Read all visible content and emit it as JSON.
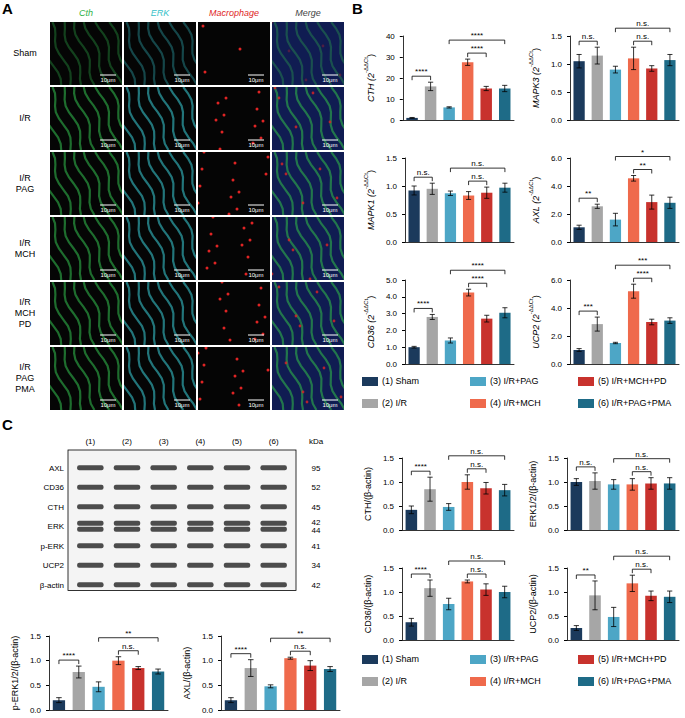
{
  "panel_labels": [
    "A",
    "B",
    "C"
  ],
  "microscopy": {
    "columns": [
      {
        "label": "Cth",
        "color": "#2fb34a"
      },
      {
        "label": "ERK",
        "color": "#35bfc8"
      },
      {
        "label": "Macrophage",
        "color": "#e02424"
      },
      {
        "label": "Merge",
        "color": "#444444"
      }
    ],
    "rows": [
      [
        "Sham"
      ],
      [
        "I/R"
      ],
      [
        "I/R",
        "PAG"
      ],
      [
        "I/R",
        "MCH"
      ],
      [
        "I/R",
        "MCH",
        "PD"
      ],
      [
        "I/R",
        "PAG",
        "PMA"
      ]
    ],
    "scale_bar": "10μm"
  },
  "blot": {
    "lanes": [
      "(1)",
      "(2)",
      "(3)",
      "(4)",
      "(5)",
      "(6)"
    ],
    "unit": "kDa",
    "rows": [
      {
        "name": "AXL",
        "kda": [
          "95"
        ]
      },
      {
        "name": "CD36",
        "kda": [
          "52"
        ]
      },
      {
        "name": "CTH",
        "kda": [
          "45"
        ]
      },
      {
        "name": "ERK",
        "kda": [
          "42",
          "44"
        ]
      },
      {
        "name": "p-ERK",
        "kda": [
          "41"
        ]
      },
      {
        "name": "UCP2",
        "kda": [
          "34"
        ]
      },
      {
        "name": "β-actin",
        "kda": [
          "42"
        ]
      }
    ]
  },
  "group_legend": [
    {
      "name": "(1) Sham",
      "color": "#1b3a5c"
    },
    {
      "name": "(2) I/R",
      "color": "#a6a6a6"
    },
    {
      "name": "(3) I/R+PAG",
      "color": "#4da6c6"
    },
    {
      "name": "(4) I/R+MCH",
      "color": "#ef6a4c"
    },
    {
      "name": "(5) I/R+MCH+PD",
      "color": "#c8322d"
    },
    {
      "name": "(6) I/R+PAG+PMA",
      "color": "#1e6b87"
    }
  ],
  "chart_data": [
    {
      "type": "bar",
      "ylabel": {
        "text": "CTH (2",
        "superscript": "-ΔΔCt",
        "suffix": ")"
      },
      "categories": [
        "(1) Sham",
        "(2) I/R",
        "(3) I/R+PAG",
        "(4) I/R+MCH",
        "(5) I/R+MCH+PD",
        "(6) I/R+PAG+PMA"
      ],
      "values": [
        1,
        16,
        6,
        27.5,
        15,
        15
      ],
      "errors": [
        0.2,
        2,
        0.3,
        1.5,
        1,
        1.5
      ],
      "colors": [
        "#1b3a5c",
        "#a6a6a6",
        "#4da6c6",
        "#ef6a4c",
        "#c8322d",
        "#1e6b87"
      ],
      "ylim": [
        0,
        40
      ],
      "yticks": [
        0,
        10,
        20,
        30,
        40
      ],
      "grid": false,
      "tick_labels": "y",
      "significance": [
        {
          "from": "(1) Sham",
          "to": "(2) I/R",
          "label": "****"
        },
        {
          "from": "(3) I/R+PAG",
          "to": "(6) I/R+PAG+PMA",
          "label": "****"
        },
        {
          "from": "(4) I/R+MCH",
          "to": "(5) I/R+MCH+PD",
          "label": "****"
        }
      ]
    },
    {
      "type": "bar",
      "ylabel": {
        "text": "MAPK3 (2",
        "superscript": "-ΔΔCt",
        "suffix": ")"
      },
      "categories": [
        "(1) Sham",
        "(2) I/R",
        "(3) I/R+PAG",
        "(4) I/R+MCH",
        "(5) I/R+MCH+PD",
        "(6) I/R+PAG+PMA"
      ],
      "values": [
        1.05,
        1.15,
        0.9,
        1.1,
        0.92,
        1.07
      ],
      "errors": [
        0.12,
        0.15,
        0.06,
        0.2,
        0.05,
        0.1
      ],
      "colors": [
        "#1b3a5c",
        "#a6a6a6",
        "#4da6c6",
        "#ef6a4c",
        "#c8322d",
        "#1e6b87"
      ],
      "ylim": [
        0,
        1.5
      ],
      "yticks": [
        {
          "value": 0,
          "label": "0.0"
        },
        {
          "value": 0.5,
          "label": "0.5"
        },
        {
          "value": 1,
          "label": "1.0"
        },
        {
          "value": 1.5,
          "label": "1.5"
        }
      ],
      "grid": false,
      "tick_labels": "y",
      "significance": [
        {
          "from": "(1) Sham",
          "to": "(2) I/R",
          "label": "n.s."
        },
        {
          "from": "(3) I/R+PAG",
          "to": "(6) I/R+PAG+PMA",
          "label": "n.s."
        },
        {
          "from": "(4) I/R+MCH",
          "to": "(5) I/R+MCH+PD",
          "label": "n.s."
        }
      ]
    },
    {
      "type": "bar",
      "ylabel": {
        "text": "MAPK1 (2",
        "superscript": "-ΔΔCt",
        "suffix": ")"
      },
      "categories": [
        "(1) Sham",
        "(2) I/R",
        "(3) I/R+PAG",
        "(4) I/R+MCH",
        "(5) I/R+MCH+PD",
        "(6) I/R+PAG+PMA"
      ],
      "values": [
        0.92,
        0.95,
        0.87,
        0.83,
        0.88,
        0.97
      ],
      "errors": [
        0.08,
        0.1,
        0.04,
        0.07,
        0.1,
        0.08
      ],
      "colors": [
        "#1b3a5c",
        "#a6a6a6",
        "#4da6c6",
        "#ef6a4c",
        "#c8322d",
        "#1e6b87"
      ],
      "ylim": [
        0,
        1.5
      ],
      "yticks": [
        {
          "value": 0,
          "label": "0.0"
        },
        {
          "value": 0.5,
          "label": "0.5"
        },
        {
          "value": 1,
          "label": "1.0"
        },
        {
          "value": 1.5,
          "label": "1.5"
        }
      ],
      "grid": false,
      "tick_labels": "y",
      "significance": [
        {
          "from": "(1) Sham",
          "to": "(2) I/R",
          "label": "n.s."
        },
        {
          "from": "(3) I/R+PAG",
          "to": "(6) I/R+PAG+PMA",
          "label": "n.s."
        },
        {
          "from": "(4) I/R+MCH",
          "to": "(5) I/R+MCH+PD",
          "label": "n.s."
        }
      ]
    },
    {
      "type": "bar",
      "ylabel": {
        "text": "AXL (2",
        "superscript": "-ΔΔCt",
        "suffix": ")"
      },
      "categories": [
        "(1) Sham",
        "(2) I/R",
        "(3) I/R+PAG",
        "(4) I/R+MCH",
        "(5) I/R+MCH+PD",
        "(6) I/R+PAG+PMA"
      ],
      "values": [
        1.05,
        2.55,
        1.6,
        4.55,
        2.85,
        2.8
      ],
      "errors": [
        0.15,
        0.15,
        0.45,
        0.2,
        0.5,
        0.4
      ],
      "colors": [
        "#1b3a5c",
        "#a6a6a6",
        "#4da6c6",
        "#ef6a4c",
        "#c8322d",
        "#1e6b87"
      ],
      "ylim": [
        0,
        6
      ],
      "yticks": [
        {
          "value": 0,
          "label": "0.0"
        },
        {
          "value": 2,
          "label": "2.0"
        },
        {
          "value": 4,
          "label": "4.0"
        },
        {
          "value": 6,
          "label": "6.0"
        }
      ],
      "grid": false,
      "tick_labels": "y",
      "significance": [
        {
          "from": "(1) Sham",
          "to": "(2) I/R",
          "label": "**"
        },
        {
          "from": "(3) I/R+PAG",
          "to": "(6) I/R+PAG+PMA",
          "label": "*"
        },
        {
          "from": "(4) I/R+MCH",
          "to": "(5) I/R+MCH+PD",
          "label": "**"
        }
      ]
    },
    {
      "type": "bar",
      "ylabel": {
        "text": "CD36 (2",
        "superscript": "-ΔΔCt",
        "suffix": ")"
      },
      "categories": [
        "(1) Sham",
        "(2) I/R",
        "(3) I/R+PAG",
        "(4) I/R+MCH",
        "(5) I/R+MCH+PD",
        "(6) I/R+PAG+PMA"
      ],
      "values": [
        1.0,
        2.8,
        1.4,
        4.25,
        2.7,
        3.05
      ],
      "errors": [
        0.05,
        0.15,
        0.15,
        0.2,
        0.2,
        0.3
      ],
      "colors": [
        "#1b3a5c",
        "#a6a6a6",
        "#4da6c6",
        "#ef6a4c",
        "#c8322d",
        "#1e6b87"
      ],
      "ylim": [
        0,
        5
      ],
      "yticks": [
        {
          "value": 0,
          "label": "0.0"
        },
        {
          "value": 1,
          "label": "1.0"
        },
        {
          "value": 2,
          "label": "2.0"
        },
        {
          "value": 3,
          "label": "3.0"
        },
        {
          "value": 4,
          "label": "4.0"
        },
        {
          "value": 5,
          "label": "5.0"
        }
      ],
      "grid": false,
      "tick_labels": "y",
      "significance": [
        {
          "from": "(1) Sham",
          "to": "(2) I/R",
          "label": "****"
        },
        {
          "from": "(3) I/R+PAG",
          "to": "(6) I/R+PAG+PMA",
          "label": "****"
        },
        {
          "from": "(4) I/R+MCH",
          "to": "(5) I/R+MCH+PD",
          "label": "****"
        }
      ]
    },
    {
      "type": "bar",
      "ylabel": {
        "text": "UCP2 (2",
        "superscript": "-ΔΔCt",
        "suffix": ")"
      },
      "categories": [
        "(1) Sham",
        "(2) I/R",
        "(3) I/R+PAG",
        "(4) I/R+MCH",
        "(5) I/R+MCH+PD",
        "(6) I/R+PAG+PMA"
      ],
      "values": [
        1.0,
        2.85,
        1.5,
        5.2,
        3.0,
        3.1
      ],
      "errors": [
        0.1,
        0.5,
        0.05,
        0.5,
        0.2,
        0.2
      ],
      "colors": [
        "#1b3a5c",
        "#a6a6a6",
        "#4da6c6",
        "#ef6a4c",
        "#c8322d",
        "#1e6b87"
      ],
      "ylim": [
        0,
        6
      ],
      "yticks": [
        {
          "value": 0,
          "label": "0.0"
        },
        {
          "value": 2,
          "label": "2.0"
        },
        {
          "value": 4,
          "label": "4.0"
        },
        {
          "value": 6,
          "label": "6.0"
        }
      ],
      "grid": false,
      "tick_labels": "y",
      "significance": [
        {
          "from": "(1) Sham",
          "to": "(2) I/R",
          "label": "***"
        },
        {
          "from": "(3) I/R+PAG",
          "to": "(6) I/R+PAG+PMA",
          "label": "***"
        },
        {
          "from": "(4) I/R+MCH",
          "to": "(5) I/R+MCH+PD",
          "label": "****"
        }
      ]
    },
    {
      "type": "bar",
      "ylabel": {
        "text": "CTH/(β-actin)"
      },
      "categories": [
        "(1) Sham",
        "(2) I/R",
        "(3) I/R+PAG",
        "(4) I/R+MCH",
        "(5) I/R+MCH+PD",
        "(6) I/R+PAG+PMA"
      ],
      "values": [
        0.42,
        0.85,
        0.48,
        1.0,
        0.87,
        0.83
      ],
      "errors": [
        0.08,
        0.25,
        0.07,
        0.15,
        0.12,
        0.12
      ],
      "colors": [
        "#1b3a5c",
        "#a6a6a6",
        "#4da6c6",
        "#ef6a4c",
        "#c8322d",
        "#1e6b87"
      ],
      "ylim": [
        0,
        1.5
      ],
      "yticks": [
        {
          "value": 0,
          "label": "0.0"
        },
        {
          "value": 0.5,
          "label": "0.5"
        },
        {
          "value": 1,
          "label": "1.0"
        },
        {
          "value": 1.5,
          "label": "1.5"
        }
      ],
      "grid": false,
      "tick_labels": "y",
      "significance": [
        {
          "from": "(1) Sham",
          "to": "(2) I/R",
          "label": "****"
        },
        {
          "from": "(3) I/R+PAG",
          "to": "(6) I/R+PAG+PMA",
          "label": "n.s."
        },
        {
          "from": "(4) I/R+MCH",
          "to": "(5) I/R+MCH+PD",
          "label": "n.s."
        }
      ]
    },
    {
      "type": "bar",
      "ylabel": {
        "text": "ERK1/2/(β-actin)"
      },
      "categories": [
        "(1) Sham",
        "(2) I/R",
        "(3) I/R+PAG",
        "(4) I/R+MCH",
        "(5) I/R+MCH+PD",
        "(6) I/R+PAG+PMA"
      ],
      "values": [
        1.0,
        1.02,
        0.95,
        0.95,
        0.97,
        0.97
      ],
      "errors": [
        0.07,
        0.17,
        0.1,
        0.12,
        0.12,
        0.12
      ],
      "colors": [
        "#1b3a5c",
        "#a6a6a6",
        "#4da6c6",
        "#ef6a4c",
        "#c8322d",
        "#1e6b87"
      ],
      "ylim": [
        0,
        1.5
      ],
      "yticks": [
        {
          "value": 0,
          "label": "0.0"
        },
        {
          "value": 0.5,
          "label": "0.5"
        },
        {
          "value": 1,
          "label": "1.0"
        },
        {
          "value": 1.5,
          "label": "1.5"
        }
      ],
      "grid": false,
      "tick_labels": "y",
      "significance": [
        {
          "from": "(1) Sham",
          "to": "(2) I/R",
          "label": "n.s."
        },
        {
          "from": "(3) I/R+PAG",
          "to": "(6) I/R+PAG+PMA",
          "label": "n.s."
        },
        {
          "from": "(4) I/R+MCH",
          "to": "(5) I/R+MCH+PD",
          "label": "n.s."
        }
      ]
    },
    {
      "type": "bar",
      "ylabel": {
        "text": "CD36/(β-actin)"
      },
      "categories": [
        "(1) Sham",
        "(2) I/R",
        "(3) I/R+PAG",
        "(4) I/R+MCH",
        "(5) I/R+MCH+PD",
        "(6) I/R+PAG+PMA"
      ],
      "values": [
        0.37,
        1.08,
        0.75,
        1.22,
        1.05,
        1.0
      ],
      "errors": [
        0.08,
        0.17,
        0.12,
        0.03,
        0.12,
        0.12
      ],
      "colors": [
        "#1b3a5c",
        "#a6a6a6",
        "#4da6c6",
        "#ef6a4c",
        "#c8322d",
        "#1e6b87"
      ],
      "ylim": [
        0,
        1.5
      ],
      "yticks": [
        {
          "value": 0,
          "label": "0.0"
        },
        {
          "value": 0.5,
          "label": "0.5"
        },
        {
          "value": 1,
          "label": "1.0"
        },
        {
          "value": 1.5,
          "label": "1.5"
        }
      ],
      "grid": false,
      "tick_labels": "y",
      "significance": [
        {
          "from": "(1) Sham",
          "to": "(2) I/R",
          "label": "****"
        },
        {
          "from": "(3) I/R+PAG",
          "to": "(6) I/R+PAG+PMA",
          "label": "n.s."
        },
        {
          "from": "(4) I/R+MCH",
          "to": "(5) I/R+MCH+PD",
          "label": "n.s."
        }
      ]
    },
    {
      "type": "bar",
      "ylabel": {
        "text": "UCP2/(β-actin)"
      },
      "categories": [
        "(1) Sham",
        "(2) I/R",
        "(3) I/R+PAG",
        "(4) I/R+MCH",
        "(5) I/R+MCH+PD",
        "(6) I/R+PAG+PMA"
      ],
      "values": [
        0.25,
        0.93,
        0.48,
        1.18,
        0.92,
        0.9
      ],
      "errors": [
        0.05,
        0.3,
        0.2,
        0.17,
        0.1,
        0.12
      ],
      "colors": [
        "#1b3a5c",
        "#a6a6a6",
        "#4da6c6",
        "#ef6a4c",
        "#c8322d",
        "#1e6b87"
      ],
      "ylim": [
        0,
        1.5
      ],
      "yticks": [
        {
          "value": 0,
          "label": "0.0"
        },
        {
          "value": 0.5,
          "label": "0.5"
        },
        {
          "value": 1,
          "label": "1.0"
        },
        {
          "value": 1.5,
          "label": "1.5"
        }
      ],
      "grid": false,
      "tick_labels": "y",
      "significance": [
        {
          "from": "(1) Sham",
          "to": "(2) I/R",
          "label": "**"
        },
        {
          "from": "(3) I/R+PAG",
          "to": "(6) I/R+PAG+PMA",
          "label": "n.s."
        },
        {
          "from": "(4) I/R+MCH",
          "to": "(5) I/R+MCH+PD",
          "label": "n.s."
        }
      ]
    },
    {
      "type": "bar",
      "ylabel": {
        "text": "p-ERK1/2/(β-actin)"
      },
      "categories": [
        "(1) Sham",
        "(2) I/R",
        "(3) I/R+PAG",
        "(4) I/R+MCH",
        "(5) I/R+MCH+PD",
        "(6) I/R+PAG+PMA"
      ],
      "values": [
        0.2,
        0.77,
        0.47,
        1.0,
        0.85,
        0.78
      ],
      "errors": [
        0.05,
        0.12,
        0.1,
        0.08,
        0.03,
        0.05
      ],
      "colors": [
        "#1b3a5c",
        "#a6a6a6",
        "#4da6c6",
        "#ef6a4c",
        "#c8322d",
        "#1e6b87"
      ],
      "ylim": [
        0,
        1.5
      ],
      "yticks": [
        {
          "value": 0,
          "label": "0.0"
        },
        {
          "value": 0.5,
          "label": "0.5"
        },
        {
          "value": 1,
          "label": "1.0"
        },
        {
          "value": 1.5,
          "label": "1.5"
        }
      ],
      "grid": false,
      "tick_labels": "y",
      "significance": [
        {
          "from": "(1) Sham",
          "to": "(2) I/R",
          "label": "****"
        },
        {
          "from": "(3) I/R+PAG",
          "to": "(6) I/R+PAG+PMA",
          "label": "**"
        },
        {
          "from": "(4) I/R+MCH",
          "to": "(5) I/R+MCH+PD",
          "label": "n.s."
        }
      ]
    },
    {
      "type": "bar",
      "ylabel": {
        "text": "AXL/(β-actin)"
      },
      "categories": [
        "(1) Sham",
        "(2) I/R",
        "(3) I/R+PAG",
        "(4) I/R+MCH",
        "(5) I/R+MCH+PD",
        "(6) I/R+PAG+PMA"
      ],
      "values": [
        0.2,
        0.85,
        0.48,
        1.05,
        0.9,
        0.83
      ],
      "errors": [
        0.05,
        0.17,
        0.03,
        0.02,
        0.1,
        0.05
      ],
      "colors": [
        "#1b3a5c",
        "#a6a6a6",
        "#4da6c6",
        "#ef6a4c",
        "#c8322d",
        "#1e6b87"
      ],
      "ylim": [
        0,
        1.5
      ],
      "yticks": [
        {
          "value": 0,
          "label": "0.0"
        },
        {
          "value": 0.5,
          "label": "0.5"
        },
        {
          "value": 1,
          "label": "1.0"
        },
        {
          "value": 1.5,
          "label": "1.5"
        }
      ],
      "grid": false,
      "tick_labels": "y",
      "significance": [
        {
          "from": "(1) Sham",
          "to": "(2) I/R",
          "label": "****"
        },
        {
          "from": "(3) I/R+PAG",
          "to": "(6) I/R+PAG+PMA",
          "label": "**"
        },
        {
          "from": "(4) I/R+MCH",
          "to": "(5) I/R+MCH+PD",
          "label": "n.s."
        }
      ]
    }
  ]
}
